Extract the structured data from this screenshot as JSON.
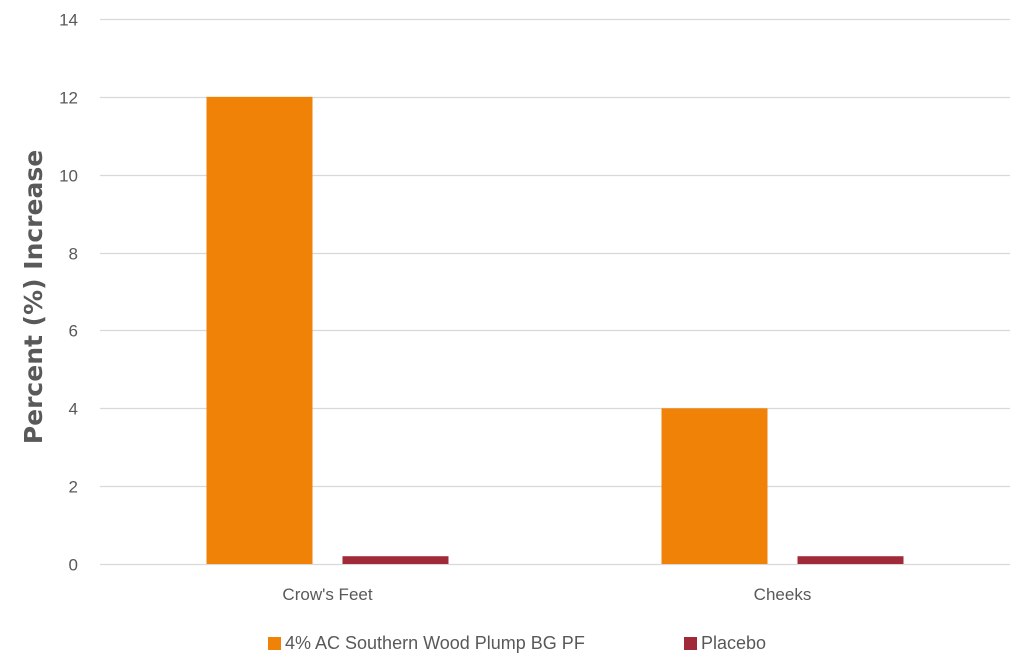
{
  "chart_data": {
    "type": "bar",
    "title": "",
    "xlabel": "",
    "ylabel": "Percent (%) Increase",
    "ylim": [
      0,
      14
    ],
    "yticks": [
      0,
      2,
      4,
      6,
      8,
      10,
      12,
      14
    ],
    "grid": true,
    "legend_position": "bottom",
    "categories": [
      "Crow's Feet",
      "Cheeks"
    ],
    "series": [
      {
        "name": "4% AC Southern Wood Plump BG PF",
        "values": [
          12,
          4
        ],
        "color": "#F08208"
      },
      {
        "name": "Placebo",
        "values": [
          0.2,
          0.2
        ],
        "color": "#A12A3A"
      }
    ],
    "gridline_color": "#D9D9D9",
    "text_color": "#595959"
  }
}
